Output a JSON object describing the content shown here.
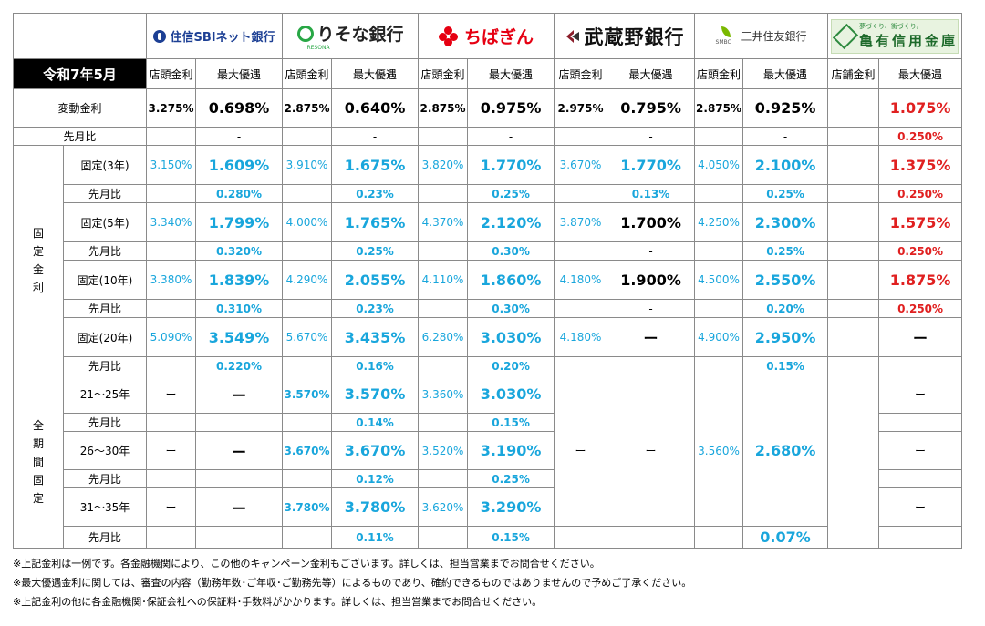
{
  "date_label": "令和7年5月",
  "banks": [
    {
      "name": "住信SBIネット銀行",
      "logo": "sbi-logo"
    },
    {
      "name": "りそな銀行",
      "sub": "RESONA",
      "logo": "resona-logo"
    },
    {
      "name": "ちばぎん",
      "logo": "chiba-logo"
    },
    {
      "name": "武蔵野銀行",
      "logo": "musashino-logo"
    },
    {
      "name": "三井住友銀行",
      "sub": "SMBC",
      "logo": "smbc-logo"
    },
    {
      "name": "亀有信用金庫",
      "slogan": "夢づくり、街づくり。",
      "logo": "kameari-logo"
    }
  ],
  "col_labels": {
    "storefront": "店頭金利",
    "storefront_kameari": "店舗金利",
    "max_discount": "最大優遇"
  },
  "row_labels": {
    "variable": "変動金利",
    "compare": "先月比",
    "fixed_group": [
      "固",
      "定",
      "金",
      "利"
    ],
    "fixed3": "固定(3年)",
    "fixed5": "固定(5年)",
    "fixed10": "固定(10年)",
    "fixed20": "固定(20年)",
    "term_group": [
      "全",
      "期",
      "間",
      "固",
      "定"
    ],
    "t21_25": "21～25年",
    "t26_30": "26～30年",
    "t31_35": "31～35年"
  },
  "variable": {
    "sbi": [
      "3.275%",
      "0.698%",
      "-"
    ],
    "resona": [
      "2.875%",
      "0.640%",
      "-"
    ],
    "chiba": [
      "2.875%",
      "0.975%",
      "-"
    ],
    "musashino": [
      "2.975%",
      "0.795%",
      "-"
    ],
    "smbc": [
      "2.875%",
      "0.925%",
      "-"
    ],
    "kameari": [
      "",
      "1.075%",
      "0.250%"
    ]
  },
  "fixed3": {
    "sbi": [
      "3.150%",
      "1.609%",
      "0.280%"
    ],
    "resona": [
      "3.910%",
      "1.675%",
      "0.23%"
    ],
    "chiba": [
      "3.820%",
      "1.770%",
      "0.25%"
    ],
    "musashino": [
      "3.670%",
      "1.770%",
      "0.13%"
    ],
    "smbc": [
      "4.050%",
      "2.100%",
      "0.25%"
    ],
    "kameari": [
      "",
      "1.375%",
      "0.250%"
    ]
  },
  "fixed5": {
    "sbi": [
      "3.340%",
      "1.799%",
      "0.320%"
    ],
    "resona": [
      "4.000%",
      "1.765%",
      "0.25%"
    ],
    "chiba": [
      "4.370%",
      "2.120%",
      "0.30%"
    ],
    "musashino": [
      "3.870%",
      "1.700%",
      "-"
    ],
    "smbc": [
      "4.250%",
      "2.300%",
      "0.25%"
    ],
    "kameari": [
      "",
      "1.575%",
      "0.250%"
    ]
  },
  "fixed10": {
    "sbi": [
      "3.380%",
      "1.839%",
      "0.310%"
    ],
    "resona": [
      "4.290%",
      "2.055%",
      "0.23%"
    ],
    "chiba": [
      "4.110%",
      "1.860%",
      "0.30%"
    ],
    "musashino": [
      "4.180%",
      "1.900%",
      "-"
    ],
    "smbc": [
      "4.500%",
      "2.550%",
      "0.20%"
    ],
    "kameari": [
      "",
      "1.875%",
      "0.250%"
    ]
  },
  "fixed20": {
    "sbi": [
      "5.090%",
      "3.549%",
      "0.220%"
    ],
    "resona": [
      "5.670%",
      "3.435%",
      "0.16%"
    ],
    "chiba": [
      "6.280%",
      "3.030%",
      "0.20%"
    ],
    "musashino": [
      "4.180%",
      "ー",
      ""
    ],
    "smbc": [
      "4.900%",
      "2.950%",
      "0.15%"
    ],
    "kameari": [
      "",
      "ー",
      ""
    ]
  },
  "term": {
    "sbi": {
      "t21_25": [
        "ー",
        "ー"
      ],
      "t26_30": [
        "ー",
        "ー"
      ],
      "t31_35": [
        "ー",
        "ー"
      ]
    },
    "resona": {
      "t21_25": [
        "3.570%",
        "3.570%",
        "0.14%"
      ],
      "t26_30": [
        "3.670%",
        "3.670%",
        "0.12%"
      ],
      "t31_35": [
        "3.780%",
        "3.780%",
        "0.11%"
      ]
    },
    "chiba": {
      "t21_25": [
        "3.360%",
        "3.030%",
        "0.15%"
      ],
      "t26_30": [
        "3.520%",
        "3.190%",
        "0.25%"
      ],
      "t31_35": [
        "3.620%",
        "3.290%",
        "0.15%"
      ]
    },
    "musashino": [
      "ー",
      "ー"
    ],
    "smbc": [
      "3.560%",
      "2.680%",
      "0.07%"
    ],
    "kameari": {
      "t21_25": "ー",
      "t26_30": "ー",
      "t31_35": "ー"
    }
  },
  "notes": [
    "※上記金利は一例です。各金融機関により、この他のキャンペーン金利もございます。詳しくは、担当営業までお問合せください。",
    "※最大優遇金利に関しては、審査の内容（勤務年数･ご年収･ご勤務先等）によるものであり、確約できるものではありませんので予めご了承ください。",
    "※上記金利の他に各金融機関･保証会社への保証料･手数料がかかります。詳しくは、担当営業までお問合せください。"
  ]
}
